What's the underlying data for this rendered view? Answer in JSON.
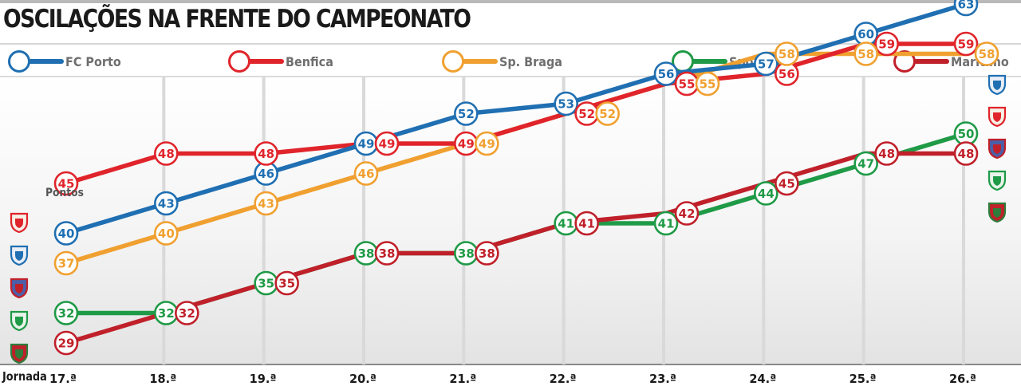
{
  "title": "OSCILAÇÕES NA FRENTE DO CAMPEONATO",
  "pontos_label": "Pontos",
  "jornada_label": "Jornada",
  "icons": {
    "left": [
      "benfica-crest-icon",
      "fc-porto-crest-icon",
      "sp-braga-crest-icon",
      "sporting-crest-icon",
      "maritimo-crest-icon"
    ],
    "right": [
      "fc-porto-crest-icon",
      "benfica-crest-icon",
      "sp-braga-crest-icon",
      "sporting-crest-icon",
      "maritimo-crest-icon"
    ]
  },
  "chart_data": {
    "type": "line",
    "title": "OSCILAÇÕES NA FRENTE DO CAMPEONATO",
    "xlabel": "Jornada",
    "ylabel": "Pontos",
    "categories": [
      "17.ª",
      "18.ª",
      "19.ª",
      "20.ª",
      "21.ª",
      "22.ª",
      "23.ª",
      "24.ª",
      "25.ª",
      "26.ª"
    ],
    "ylim": [
      27,
      65
    ],
    "grid": "vertical",
    "legend": "top",
    "series": [
      {
        "name": "FC Porto",
        "color": "#1f6fb2",
        "values": [
          40,
          43,
          46,
          49,
          52,
          53,
          56,
          57,
          60,
          63
        ]
      },
      {
        "name": "Benfica",
        "color": "#e0242b",
        "values": [
          45,
          48,
          48,
          49,
          49,
          52,
          55,
          56,
          59,
          59
        ]
      },
      {
        "name": "Sp. Braga",
        "color": "#f0a030",
        "values": [
          37,
          40,
          43,
          46,
          49,
          52,
          55,
          58,
          58,
          58
        ]
      },
      {
        "name": "Sporting",
        "color": "#1f9a46",
        "values": [
          32,
          32,
          35,
          38,
          38,
          41,
          41,
          44,
          47,
          50
        ]
      },
      {
        "name": "Marítimo",
        "color": "#c0202a",
        "values": [
          29,
          32,
          35,
          38,
          38,
          41,
          42,
          45,
          48,
          48
        ]
      }
    ]
  }
}
